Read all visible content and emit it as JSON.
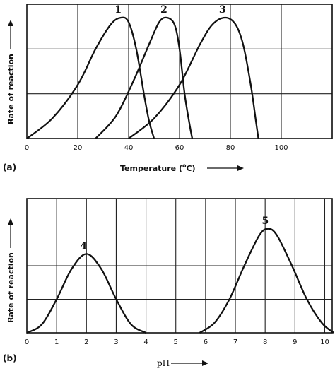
{
  "chart_data": [
    {
      "type": "line",
      "panel_label": "(a)",
      "xlabel_text": "Temperature (",
      "xlabel_sup": "o",
      "xlabel_unit": "C)",
      "ylabel": "Rate of reaction",
      "xlim": [
        0,
        120
      ],
      "ylim": [
        0,
        3
      ],
      "x_ticks": [
        "0",
        "20",
        "40",
        "60",
        "80",
        "100"
      ],
      "x_tick_values": [
        0,
        20,
        40,
        60,
        80,
        100
      ],
      "grid_x": [
        20,
        40,
        60,
        80,
        100,
        120
      ],
      "grid_y": [
        1,
        2,
        3
      ],
      "series": [
        {
          "name": "1",
          "x": [
            0,
            10,
            20,
            27,
            33,
            37,
            40,
            43,
            46,
            48,
            50
          ],
          "y": [
            0,
            0.45,
            1.2,
            2.0,
            2.55,
            2.7,
            2.6,
            2.0,
            1.0,
            0.4,
            0
          ]
        },
        {
          "name": "2",
          "x": [
            27,
            35,
            42,
            48,
            52,
            55,
            58,
            60,
            62,
            64,
            65
          ],
          "y": [
            0,
            0.5,
            1.3,
            2.1,
            2.6,
            2.7,
            2.55,
            2.0,
            1.0,
            0.3,
            0
          ]
        },
        {
          "name": "3",
          "x": [
            40,
            50,
            60,
            68,
            73,
            78,
            82,
            85,
            88,
            90,
            91
          ],
          "y": [
            0,
            0.45,
            1.2,
            2.1,
            2.55,
            2.7,
            2.55,
            2.1,
            1.2,
            0.4,
            0
          ]
        }
      ]
    },
    {
      "type": "line",
      "panel_label": "(b)",
      "xlabel_text": "pH",
      "ylabel": "Rate of reaction",
      "xlim": [
        0,
        10.25
      ],
      "ylim": [
        0,
        4
      ],
      "x_ticks": [
        "0",
        "1",
        "2",
        "3",
        "4",
        "5",
        "6",
        "7",
        "8",
        "9",
        "10"
      ],
      "x_tick_values": [
        0,
        1,
        2,
        3,
        4,
        5,
        6,
        7,
        8,
        9,
        10
      ],
      "grid_x": [
        1,
        2,
        3,
        4,
        5,
        6,
        7,
        8,
        9,
        10
      ],
      "grid_y": [
        1,
        2,
        3,
        4
      ],
      "emphasized_x": [
        2,
        3
      ],
      "emphasized_y": [
        1
      ],
      "series": [
        {
          "name": "4",
          "x": [
            0,
            0.5,
            1,
            1.5,
            2,
            2.5,
            3,
            3.5,
            4
          ],
          "y": [
            0,
            0.25,
            1.0,
            1.9,
            2.35,
            1.9,
            1.0,
            0.25,
            0
          ]
        },
        {
          "name": "5",
          "x": [
            5.8,
            6.3,
            6.8,
            7.3,
            7.8,
            8.1,
            8.4,
            8.9,
            9.4,
            9.9,
            10.3
          ],
          "y": [
            0,
            0.3,
            1.0,
            2.0,
            2.9,
            3.1,
            2.9,
            2.0,
            1.0,
            0.3,
            0
          ]
        }
      ]
    }
  ]
}
